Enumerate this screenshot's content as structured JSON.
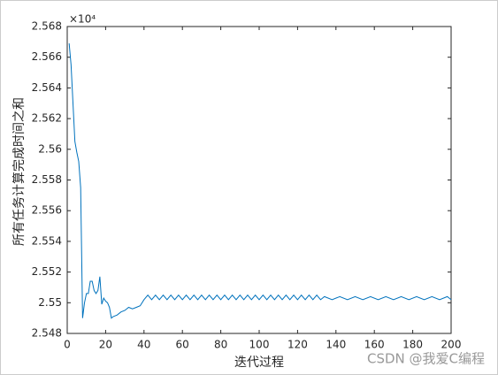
{
  "chart_data": {
    "type": "line",
    "xlabel": "迭代过程",
    "ylabel": "所有任务计算完成时间之和",
    "y_exponent_label": "×10⁴",
    "watermark": "CSDN @我爱C编程",
    "x": [
      1,
      2,
      3,
      4,
      5,
      6,
      7,
      8,
      9,
      10,
      11,
      12,
      13,
      14,
      15,
      16,
      17,
      18,
      19,
      20,
      21,
      22,
      23,
      24,
      26,
      28,
      30,
      32,
      34,
      36,
      38,
      40,
      42,
      44,
      46,
      48,
      50,
      52,
      54,
      56,
      58,
      60,
      62,
      64,
      66,
      68,
      70,
      72,
      74,
      76,
      78,
      80,
      82,
      84,
      86,
      88,
      90,
      92,
      94,
      96,
      98,
      100,
      102,
      104,
      106,
      108,
      110,
      112,
      114,
      116,
      118,
      120,
      122,
      124,
      126,
      128,
      130,
      132,
      134,
      138,
      142,
      146,
      150,
      154,
      158,
      162,
      166,
      170,
      174,
      178,
      182,
      186,
      190,
      194,
      198,
      200
    ],
    "series": [
      {
        "color": "#0072bd",
        "values": [
          2.5669,
          2.5655,
          2.563,
          2.5605,
          2.5598,
          2.5592,
          2.5575,
          2.549,
          2.55,
          2.5506,
          2.5506,
          2.5514,
          2.5514,
          2.5508,
          2.5506,
          2.5508,
          2.5517,
          2.5499,
          2.5503,
          2.5501,
          2.55,
          2.5497,
          2.549,
          2.5491,
          2.5492,
          2.5494,
          2.5495,
          2.5497,
          2.5496,
          2.5497,
          2.5498,
          2.5502,
          2.5505,
          2.5502,
          2.5505,
          2.5502,
          2.5505,
          2.5502,
          2.5505,
          2.5502,
          2.5505,
          2.5502,
          2.5505,
          2.5502,
          2.5505,
          2.5502,
          2.5505,
          2.5502,
          2.5505,
          2.5502,
          2.5505,
          2.5502,
          2.5505,
          2.5502,
          2.5505,
          2.5502,
          2.5505,
          2.5502,
          2.5505,
          2.5502,
          2.5505,
          2.5502,
          2.5505,
          2.5502,
          2.5505,
          2.5502,
          2.5505,
          2.5502,
          2.5505,
          2.5502,
          2.5505,
          2.5502,
          2.5505,
          2.5502,
          2.5505,
          2.5502,
          2.5505,
          2.5502,
          2.5504,
          2.5502,
          2.5504,
          2.5502,
          2.5504,
          2.5502,
          2.5504,
          2.5502,
          2.5504,
          2.5502,
          2.5504,
          2.5502,
          2.5504,
          2.5502,
          2.5504,
          2.5502,
          2.5504,
          2.5502
        ]
      }
    ],
    "xlim": [
      0,
      200
    ],
    "xticks": [
      0,
      20,
      40,
      60,
      80,
      100,
      120,
      140,
      160,
      180,
      200
    ],
    "ylim": [
      2.548,
      2.568
    ],
    "yticks": [
      2.548,
      2.55,
      2.552,
      2.554,
      2.556,
      2.558,
      2.56,
      2.562,
      2.564,
      2.566,
      2.568
    ]
  }
}
